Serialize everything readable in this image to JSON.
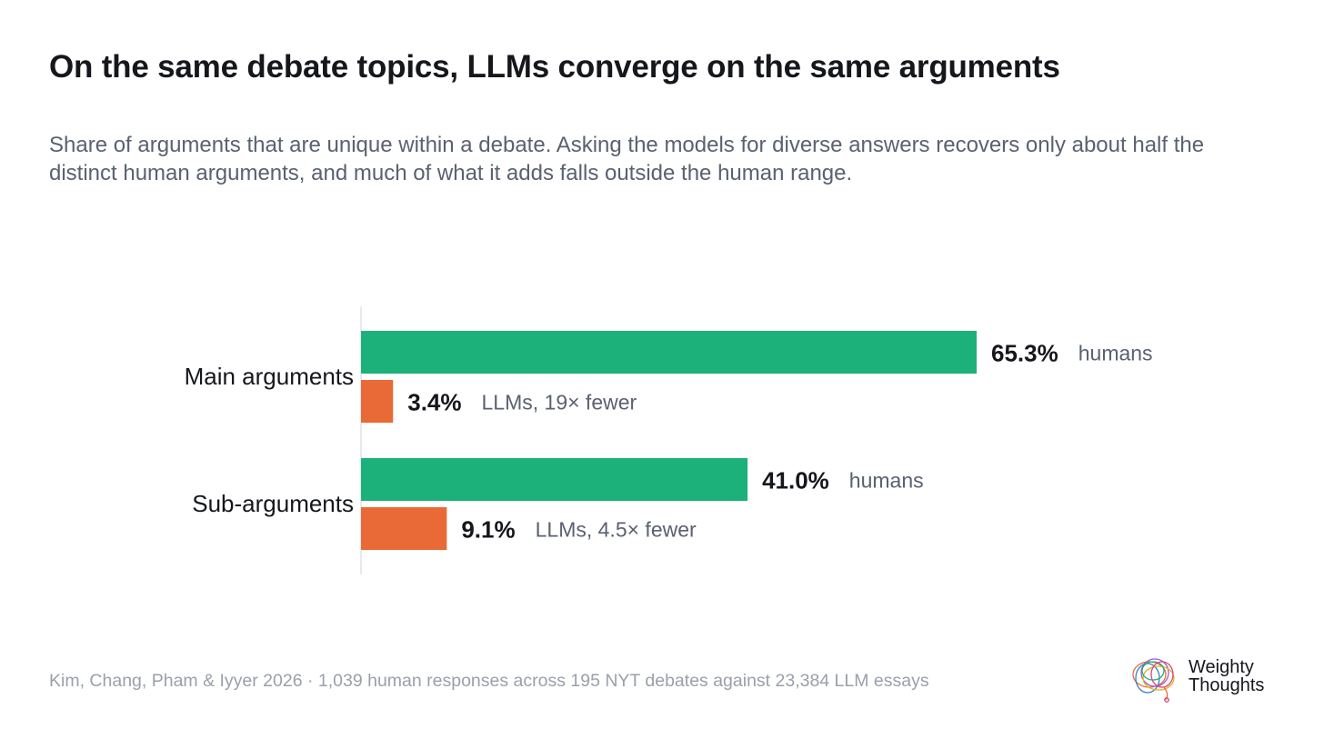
{
  "title": "On the same debate topics, LLMs converge on the same arguments",
  "subtitle": "Share of arguments that are unique within a debate. Asking the models for diverse answers recovers only about half the distinct human arguments, and much of what it adds falls outside the human range.",
  "chart_data": {
    "type": "bar",
    "orientation": "horizontal",
    "unit": "%",
    "xlim": [
      0,
      100
    ],
    "grid": false,
    "categories": [
      "Main arguments",
      "Sub-arguments"
    ],
    "series": [
      {
        "color": "#1cb07b",
        "values": [
          65.3,
          41.0
        ],
        "value_labels": [
          "65.3%",
          "41.0%"
        ],
        "annotations": [
          "humans",
          "humans"
        ]
      },
      {
        "color": "#e96a36",
        "values": [
          3.4,
          9.1
        ],
        "value_labels": [
          "3.4%",
          "9.1%"
        ],
        "annotations": [
          "LLMs, 19× fewer",
          "LLMs, 4.5× fewer"
        ]
      }
    ]
  },
  "footer": "Kim, Chang, Pham & Iyyer 2026 · 1,039 human responses across 195 NYT debates against 23,384 LLM essays",
  "brand": {
    "line1": "Weighty",
    "line2": "Thoughts"
  }
}
